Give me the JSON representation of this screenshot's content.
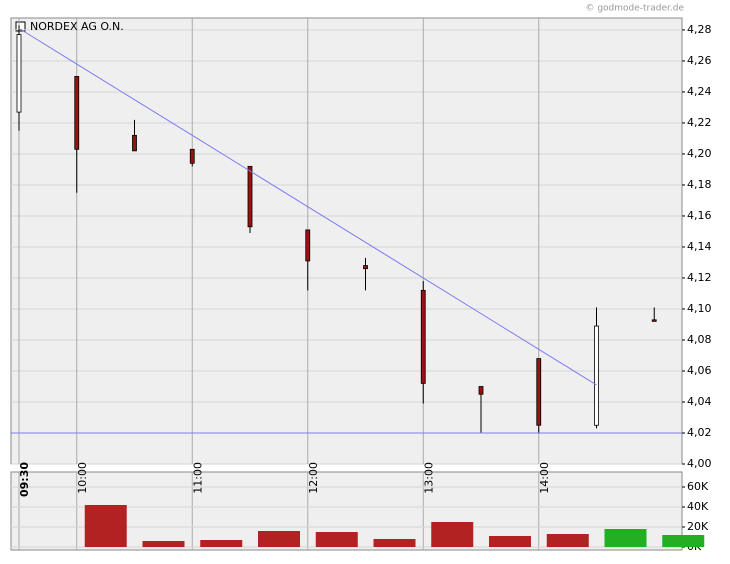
{
  "watermark": "© godmode-trader.de",
  "chart_data": [
    {
      "type": "candlestick",
      "title": "NORDEX AG O.N.",
      "categories": [
        "09:30",
        "10:00",
        null,
        "11:00",
        null,
        "12:00",
        null,
        "13:00",
        null,
        "14:00",
        null,
        null
      ],
      "open": [
        4.227,
        4.25,
        4.212,
        4.203,
        4.192,
        4.151,
        4.128,
        4.112,
        4.05,
        4.068,
        4.025,
        4.093
      ],
      "high": [
        4.283,
        4.25,
        4.222,
        4.203,
        4.192,
        4.151,
        4.133,
        4.118,
        4.05,
        4.068,
        4.101,
        4.101
      ],
      "low": [
        4.215,
        4.175,
        4.202,
        4.192,
        4.149,
        4.112,
        4.112,
        4.039,
        4.02,
        4.02,
        4.023,
        4.092
      ],
      "close": [
        4.277,
        4.203,
        4.202,
        4.194,
        4.153,
        4.131,
        4.126,
        4.052,
        4.045,
        4.025,
        4.089,
        4.092
      ],
      "up_color": "#ffffff",
      "down_color": "#9b1010",
      "trendline": {
        "color": "#7b7bf0",
        "values": [
          4.281,
          4.258,
          4.235,
          4.212,
          4.189,
          4.166,
          4.143,
          4.12,
          4.097,
          4.074,
          4.051,
          null
        ]
      },
      "support_line": {
        "color": "#7b7bf0",
        "value": 4.02
      },
      "ylim": [
        4.0,
        4.2877
      ],
      "yticks": [
        {
          "value": 4.0,
          "label": "4,00"
        },
        {
          "value": 4.02,
          "label": "4,02"
        },
        {
          "value": 4.04,
          "label": "4,04"
        },
        {
          "value": 4.06,
          "label": "4,06"
        },
        {
          "value": 4.08,
          "label": "4,08"
        },
        {
          "value": 4.1,
          "label": "4,10"
        },
        {
          "value": 4.12,
          "label": "4,12"
        },
        {
          "value": 4.14,
          "label": "4,14"
        },
        {
          "value": 4.16,
          "label": "4,16"
        },
        {
          "value": 4.18,
          "label": "4,18"
        },
        {
          "value": 4.2,
          "label": "4,20"
        },
        {
          "value": 4.22,
          "label": "4,22"
        },
        {
          "value": 4.24,
          "label": "4,24"
        },
        {
          "value": 4.26,
          "label": "4,26"
        },
        {
          "value": 4.28,
          "label": "4,28"
        }
      ],
      "grid": true
    },
    {
      "type": "bar",
      "values": [
        null,
        42000,
        6000,
        7000,
        16000,
        15000,
        8000,
        25000,
        11000,
        13000,
        18000,
        12000
      ],
      "colors": [
        "#b22222",
        "#b22222",
        "#b22222",
        "#b22222",
        "#b22222",
        "#b22222",
        "#b22222",
        "#b22222",
        "#b22222",
        "#b22222",
        "#22b022",
        "#22b022"
      ],
      "ylim": [
        -3000,
        75000
      ],
      "yticks": [
        {
          "value": 0,
          "label": "0K"
        },
        {
          "value": 20000,
          "label": "20K"
        },
        {
          "value": 40000,
          "label": "40K"
        },
        {
          "value": 60000,
          "label": "60K"
        }
      ],
      "grid": true
    }
  ]
}
